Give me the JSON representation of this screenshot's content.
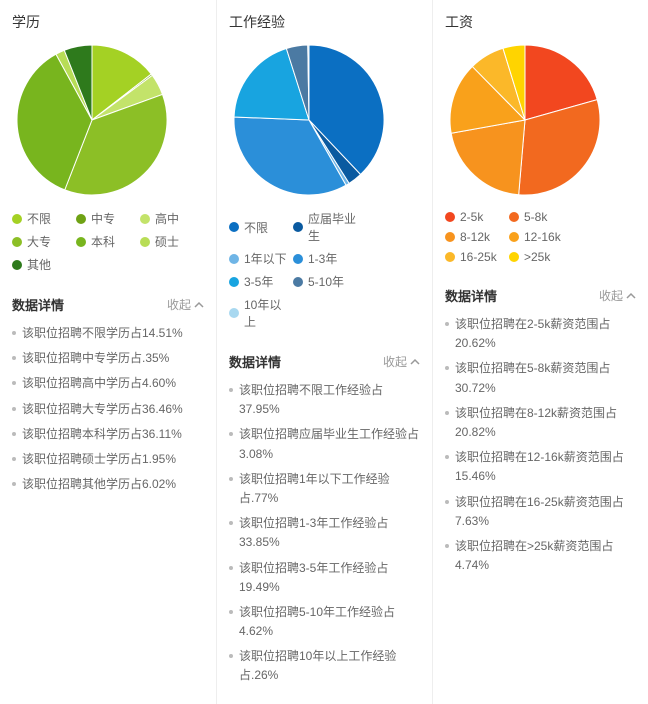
{
  "columns": [
    {
      "title": "学历",
      "chart": {
        "type": "pie",
        "slices": [
          {
            "label": "不限",
            "value": 14.51,
            "color": "#a4d124"
          },
          {
            "label": "中专",
            "value": 0.35,
            "color": "#6fa214"
          },
          {
            "label": "高中",
            "value": 4.6,
            "color": "#c3e36a"
          },
          {
            "label": "大专",
            "value": 36.46,
            "color": "#8cbf26"
          },
          {
            "label": "本科",
            "value": 36.11,
            "color": "#78b51e"
          },
          {
            "label": "硕士",
            "value": 1.95,
            "color": "#b8dd56"
          },
          {
            "label": "其他",
            "value": 6.02,
            "color": "#2e7a1c"
          }
        ],
        "stroke": "#ffffff",
        "stroke_width": 1,
        "radius": 75,
        "start_angle_deg": -90
      },
      "detail_title": "数据详情",
      "collapse_label": "收起",
      "details": [
        "该职位招聘不限学历占14.51%",
        "该职位招聘中专学历占.35%",
        "该职位招聘高中学历占4.60%",
        "该职位招聘大专学历占36.46%",
        "该职位招聘本科学历占36.11%",
        "该职位招聘硕士学历占1.95%",
        "该职位招聘其他学历占6.02%"
      ]
    },
    {
      "title": "工作经验",
      "chart": {
        "type": "pie",
        "slices": [
          {
            "label": "不限",
            "value": 37.95,
            "color": "#0b6fc2"
          },
          {
            "label": "应届毕业生",
            "value": 3.08,
            "color": "#0a5aa0"
          },
          {
            "label": "1年以下",
            "value": 0.77,
            "color": "#6fb5e6"
          },
          {
            "label": "1-3年",
            "value": 33.85,
            "color": "#2b8fd9"
          },
          {
            "label": "3-5年",
            "value": 19.49,
            "color": "#18a4e0"
          },
          {
            "label": "5-10年",
            "value": 4.62,
            "color": "#4b7aa3"
          },
          {
            "label": "10年以上",
            "value": 0.26,
            "color": "#a8d8f0"
          }
        ],
        "stroke": "#ffffff",
        "stroke_width": 1,
        "radius": 75,
        "start_angle_deg": -90
      },
      "detail_title": "数据详情",
      "collapse_label": "收起",
      "details": [
        "该职位招聘不限工作经验占37.95%",
        "该职位招聘应届毕业生工作经验占3.08%",
        "该职位招聘1年以下工作经验占.77%",
        "该职位招聘1-3年工作经验占33.85%",
        "该职位招聘3-5年工作经验占19.49%",
        "该职位招聘5-10年工作经验占4.62%",
        "该职位招聘10年以上工作经验占.26%"
      ]
    },
    {
      "title": "工资",
      "chart": {
        "type": "pie",
        "slices": [
          {
            "label": "2-5k",
            "value": 20.62,
            "color": "#f2471f"
          },
          {
            "label": "5-8k",
            "value": 30.72,
            "color": "#f2691f"
          },
          {
            "label": "8-12k",
            "value": 20.82,
            "color": "#f7931e"
          },
          {
            "label": "12-16k",
            "value": 15.46,
            "color": "#f9a11b"
          },
          {
            "label": "16-25k",
            "value": 7.63,
            "color": "#fbb829"
          },
          {
            "label": ">25k",
            "value": 4.74,
            "color": "#ffd400"
          }
        ],
        "stroke": "#ffffff",
        "stroke_width": 1,
        "radius": 75,
        "start_angle_deg": -90
      },
      "detail_title": "数据详情",
      "collapse_label": "收起",
      "details": [
        "该职位招聘在2-5k薪资范围占20.62%",
        "该职位招聘在5-8k薪资范围占30.72%",
        "该职位招聘在8-12k薪资范围占20.82%",
        "该职位招聘在12-16k薪资范围占15.46%",
        "该职位招聘在16-25k薪资范围占7.63%",
        "该职位招聘在>25k薪资范围占4.74%"
      ]
    }
  ]
}
